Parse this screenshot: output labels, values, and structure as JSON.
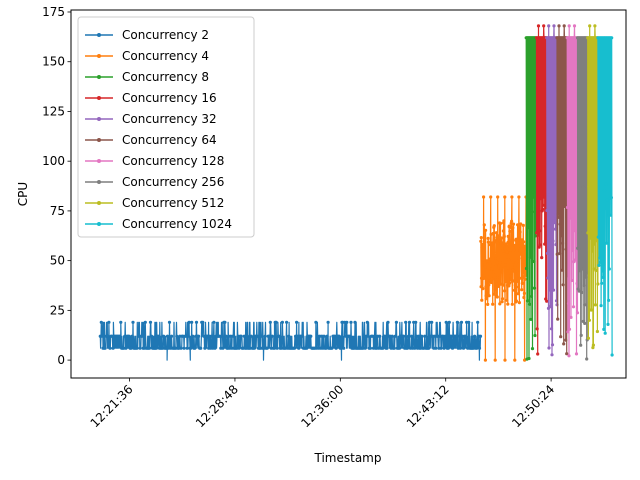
{
  "chart_data": {
    "type": "line",
    "xlabel": "Timestamp",
    "ylabel": "CPU",
    "x_range": [
      "12:17:36",
      "12:55:31"
    ],
    "ylim": [
      -9,
      176
    ],
    "y_ticks": [
      0,
      25,
      50,
      75,
      100,
      125,
      150,
      175
    ],
    "x_ticks": [
      "12:21:36",
      "12:28:48",
      "12:36:00",
      "12:43:12",
      "12:50:24"
    ],
    "grid": false,
    "legend_position": "upper left",
    "marker": "dot",
    "series": [
      {
        "name": "Concurrency 2",
        "color": "#1f77b4",
        "time_range": [
          "12:19:36",
          "12:45:36"
        ],
        "baseline": 6,
        "band_low": 6,
        "band_high": 12,
        "max": 19,
        "min": 0,
        "spikes_to_max": [
          "12:19:40",
          "12:20:05",
          "12:20:30",
          "12:21:00",
          "12:21:50",
          "12:23:20",
          "12:25:40",
          "12:26:10",
          "12:27:00",
          "12:27:40",
          "12:28:20",
          "12:29:40",
          "12:30:30",
          "12:31:30",
          "12:32:30",
          "12:33:10",
          "12:34:20",
          "12:35:10",
          "12:36:10",
          "12:37:00",
          "12:40:30",
          "12:41:10",
          "12:42:00",
          "12:44:00",
          "12:45:00"
        ],
        "drops_to_zero": [
          "12:24:10",
          "12:25:45",
          "12:30:45",
          "12:36:05",
          "12:45:30"
        ]
      },
      {
        "name": "Concurrency 4",
        "color": "#ff7f0e",
        "time_range": [
          "12:45:36",
          "12:48:42"
        ],
        "band_low": 28,
        "band_high": 70,
        "max": 82,
        "min": 0,
        "typical": 50
      },
      {
        "name": "Concurrency 8",
        "color": "#2ca02c",
        "time_range": [
          "12:48:42",
          "12:49:24"
        ],
        "plateau": 162,
        "max": 162,
        "min": 0
      },
      {
        "name": "Concurrency 16",
        "color": "#d62728",
        "time_range": [
          "12:49:24",
          "12:50:06"
        ],
        "plateau": 162,
        "max": 168,
        "min": 0
      },
      {
        "name": "Concurrency 32",
        "color": "#9467bd",
        "time_range": [
          "12:50:06",
          "12:50:48"
        ],
        "plateau": 162,
        "max": 168,
        "min": 0
      },
      {
        "name": "Concurrency 64",
        "color": "#8c564b",
        "time_range": [
          "12:50:48",
          "12:51:30"
        ],
        "plateau": 162,
        "max": 168,
        "min": 0
      },
      {
        "name": "Concurrency 128",
        "color": "#e377c2",
        "time_range": [
          "12:51:30",
          "12:52:12"
        ],
        "plateau": 162,
        "max": 168,
        "min": 0
      },
      {
        "name": "Concurrency 256",
        "color": "#7f7f7f",
        "time_range": [
          "12:52:12",
          "12:52:54"
        ],
        "plateau": 162,
        "max": 162,
        "min": 0
      },
      {
        "name": "Concurrency 512",
        "color": "#bcbd22",
        "time_range": [
          "12:52:54",
          "12:53:36"
        ],
        "plateau": 162,
        "max": 168,
        "min": 0
      },
      {
        "name": "Concurrency 1024",
        "color": "#17becf",
        "time_range": [
          "12:53:36",
          "12:54:34"
        ],
        "plateau": 162,
        "max": 162,
        "min": 0
      }
    ]
  }
}
